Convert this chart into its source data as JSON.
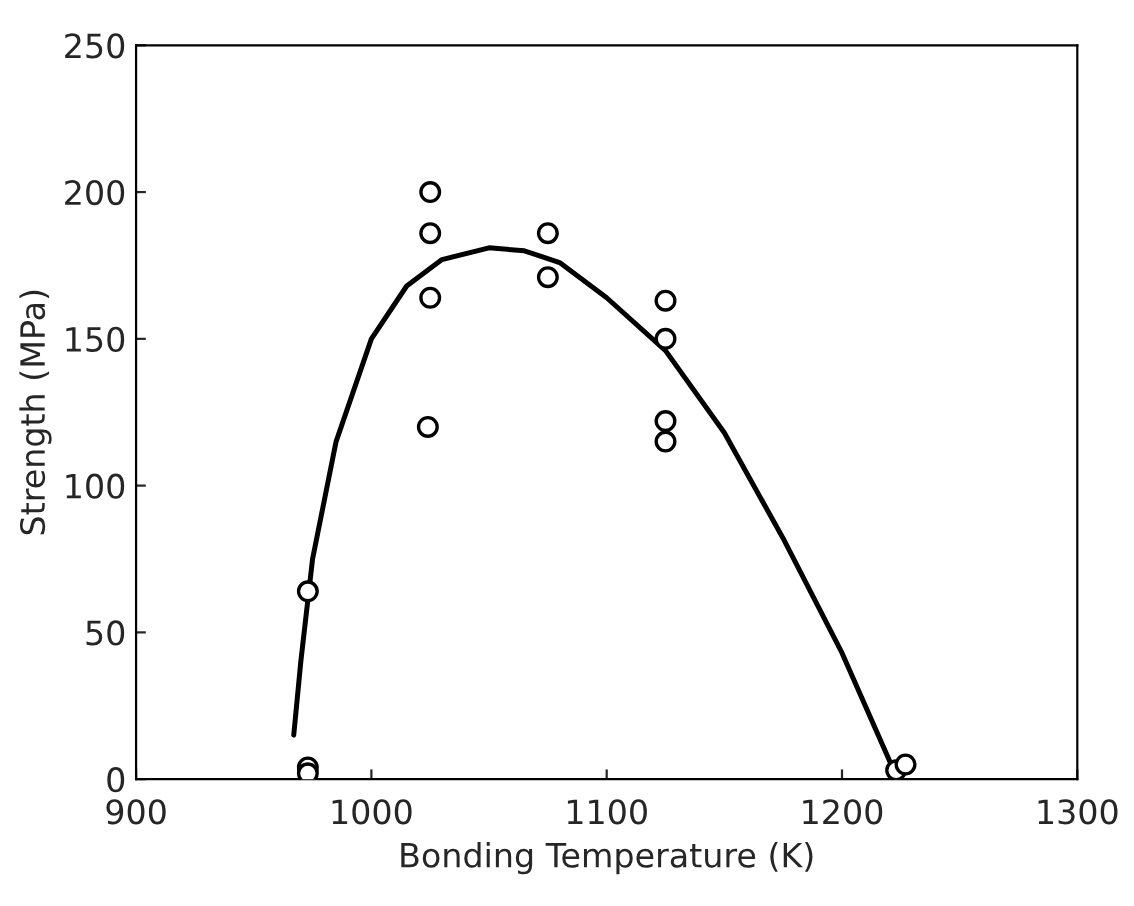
{
  "chart_data": {
    "type": "scatter",
    "xlabel": "Bonding Temperature (K)",
    "ylabel": "Strength (MPa)",
    "xlim": [
      900,
      1300
    ],
    "ylim": [
      0,
      250
    ],
    "xticks": [
      900,
      1000,
      1100,
      1200,
      1300
    ],
    "yticks": [
      0,
      50,
      100,
      150,
      200,
      250
    ],
    "grid": false,
    "legend": false,
    "series": [
      {
        "marker": "circle",
        "color": "#000000",
        "x": [
          973,
          973,
          973,
          1024,
          1025,
          1025,
          1025,
          1075,
          1075,
          1125,
          1125,
          1125,
          1125,
          1223,
          1227
        ],
        "values": [
          64,
          4,
          2,
          120,
          200,
          186,
          164,
          186,
          171,
          163,
          150,
          122,
          115,
          3,
          5
        ]
      },
      {
        "type": "line",
        "marker": "none",
        "line_style": "solid",
        "color": "#000000",
        "x": [
          967,
          970,
          975,
          985,
          1000,
          1015,
          1030,
          1050,
          1065,
          1080,
          1100,
          1125,
          1150,
          1175,
          1200,
          1222
        ],
        "values": [
          15,
          40,
          75,
          115,
          150,
          168,
          177,
          181,
          180,
          176,
          164,
          146,
          118,
          82,
          43,
          3
        ]
      }
    ]
  }
}
